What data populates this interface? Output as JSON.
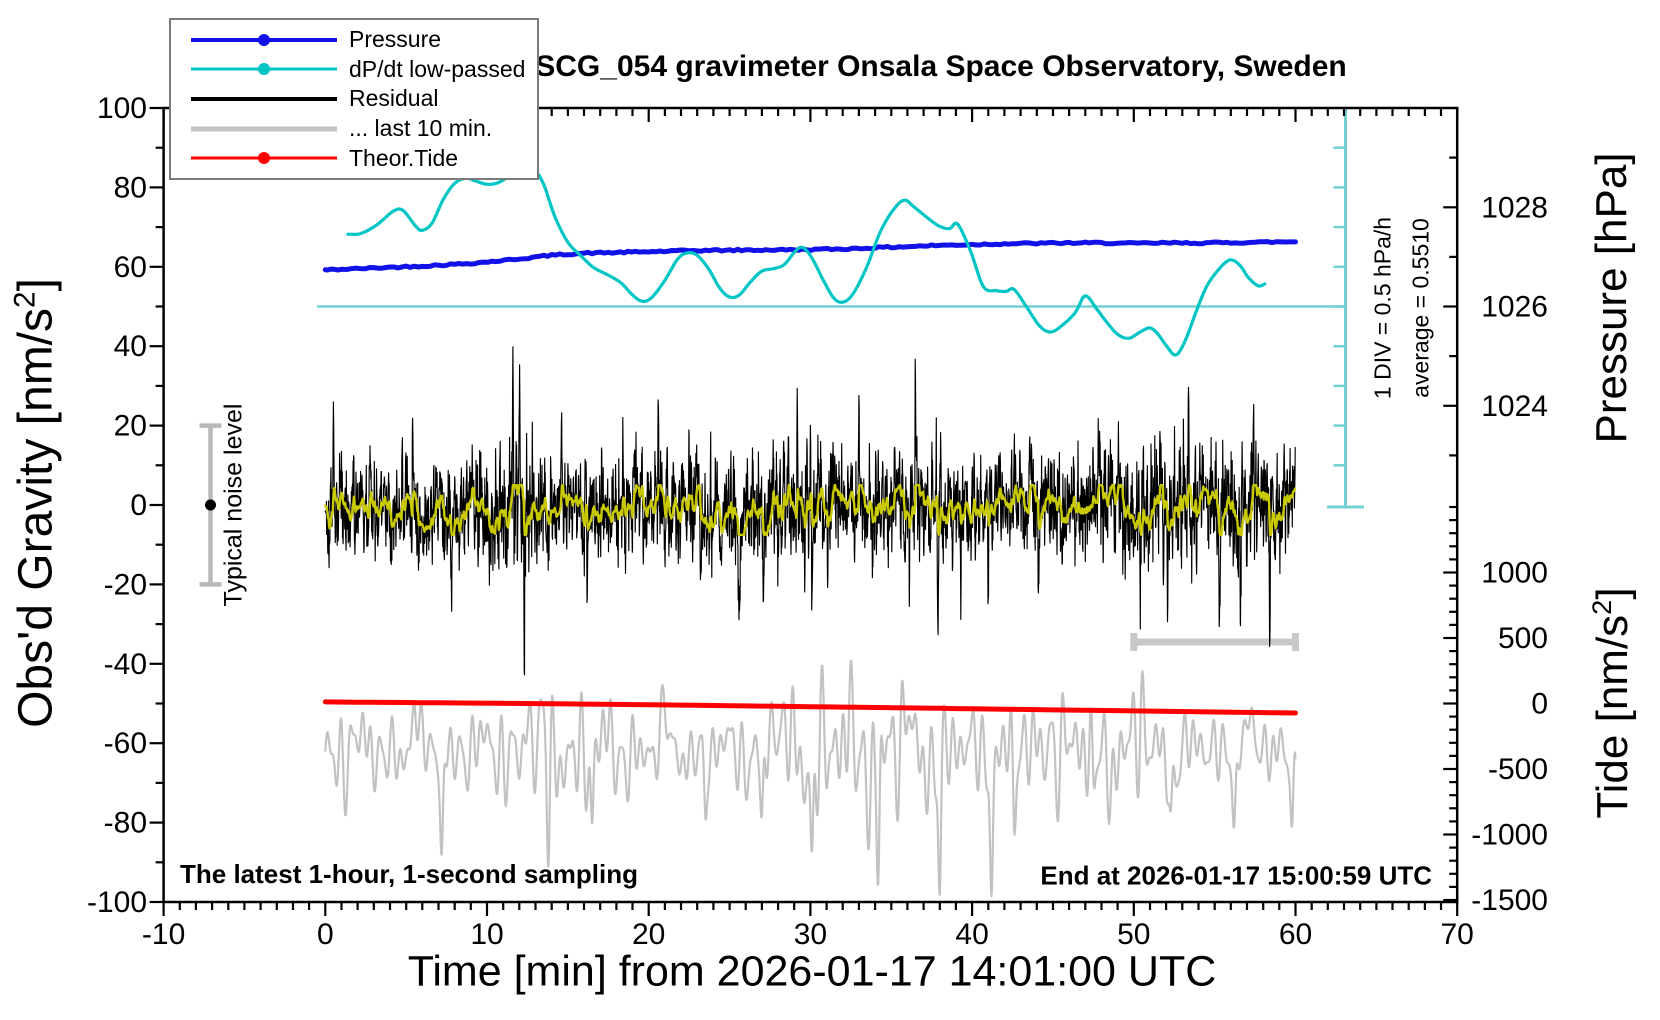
{
  "colors": {
    "pressure": "#1212E8",
    "dpdt": "#00C5C5",
    "dpdt_ref": "#74D1D1",
    "residual": "#000000",
    "last10": "#C2C2C2",
    "marker_gray": "#C8C8C8",
    "noise_bar": "#B8B8B8",
    "tide": "#FF0000",
    "lowpass": "#C9C900",
    "frame": "#000000"
  },
  "legend": {
    "items": [
      {
        "label": "Pressure",
        "color": "#1212E8",
        "thickness": 4,
        "dot": true
      },
      {
        "label": "dP/dt low-passed",
        "color": "#00C5C5",
        "thickness": 3,
        "dot": true
      },
      {
        "label": "Residual",
        "color": "#000000",
        "thickness": 4,
        "dot": false
      },
      {
        "label": "... last 10 min.",
        "color": "#C2C2C2",
        "thickness": 5,
        "dot": false
      },
      {
        "label": "Theor.Tide",
        "color": "#FF0000",
        "thickness": 3,
        "dot": true
      }
    ]
  },
  "chart_data": {
    "type": "line",
    "title": "SCG_054 gravimeter Onsala Space Observatory, Sweden",
    "x_axis": {
      "label": "Time [min] from 2026-01-17 14:01:00 UTC",
      "min": -10,
      "max": 70,
      "major_ticks": [
        -10,
        0,
        10,
        20,
        30,
        40,
        50,
        60,
        70
      ],
      "minor_step": 1
    },
    "y_left": {
      "label_prefix": "Obs'd Gravity [nm/s",
      "label_sup": "2",
      "label_suffix": "]",
      "min": -100,
      "max": 100,
      "major_step": 20,
      "minor_step": 10
    },
    "y_pressure": {
      "label": "Pressure [hPa]",
      "major_ticks": [
        1024,
        1026,
        1028
      ],
      "minor_step": 1,
      "min": 1022,
      "max": 1030,
      "anchor_hpa": 1026,
      "anchor_gravity": 50,
      "gravity_per_hpa": 12.5
    },
    "y_tide": {
      "label_prefix": "Tide [nm/s",
      "label_sup": "2",
      "label_suffix": "]",
      "major_ticks": [
        1000,
        500,
        0,
        -500,
        -1000,
        -1500
      ],
      "minor_step": 100,
      "min": -1500,
      "max": 1500,
      "anchor_tide": 0,
      "anchor_gravity": -50,
      "gravity_per_tide_unit": 0.033
    },
    "annotations": {
      "noise_marker_label": "Typical noise level",
      "div_label": "1 DIV = 0.5 hPa/h",
      "average_label": "average = 0.5510",
      "sampling_label": "The latest 1-hour, 1-second sampling",
      "end_label": "End at 2026-01-17 15:00:59 UTC"
    },
    "noise_marker": {
      "t": -7.1,
      "center_gravity": 0,
      "half_range_gravity": 20
    },
    "dpdt_scale": {
      "zero_line_gravity": 50,
      "div_value_hpa_per_h": 0.5,
      "average_hpa_per_h": 0.551,
      "divisions_above_zero": 4,
      "divisions_below_zero": 5
    },
    "series": {
      "pressure": {
        "name": "Pressure",
        "keypoints": [
          [
            0,
            59.2
          ],
          [
            3,
            59.7
          ],
          [
            6,
            60.2
          ],
          [
            9,
            60.9
          ],
          [
            12,
            62.0
          ],
          [
            14,
            62.9
          ],
          [
            16,
            63.4
          ],
          [
            18,
            63.6
          ],
          [
            20,
            63.8
          ],
          [
            23,
            64.1
          ],
          [
            26,
            64.2
          ],
          [
            29,
            64.3
          ],
          [
            32,
            64.5
          ],
          [
            34,
            64.8
          ],
          [
            36,
            65.1
          ],
          [
            38,
            65.4
          ],
          [
            40,
            65.6
          ],
          [
            42,
            65.8
          ],
          [
            44,
            65.9
          ],
          [
            46,
            66.0
          ],
          [
            48,
            66.0
          ],
          [
            50,
            65.9
          ],
          [
            52,
            66.0
          ],
          [
            54,
            66.0
          ],
          [
            56,
            66.1
          ],
          [
            58,
            66.2
          ],
          [
            60,
            66.3
          ]
        ],
        "jitter_seed": 42
      },
      "dpdt": {
        "name": "dP/dt low-passed",
        "keypoints": [
          [
            1.4,
            68.2
          ],
          [
            2.2,
            68.4
          ],
          [
            3.2,
            70.6
          ],
          [
            4.2,
            74.0
          ],
          [
            4.8,
            74.2
          ],
          [
            5.6,
            70.2
          ],
          [
            6.0,
            69.2
          ],
          [
            6.6,
            71.0
          ],
          [
            7.3,
            77.0
          ],
          [
            8.0,
            81.0
          ],
          [
            8.7,
            82.3
          ],
          [
            9.3,
            81.6
          ],
          [
            10.0,
            80.8
          ],
          [
            10.7,
            81.2
          ],
          [
            11.4,
            83.0
          ],
          [
            12.2,
            85.6
          ],
          [
            12.9,
            84.6
          ],
          [
            13.5,
            80.8
          ],
          [
            14.2,
            72.6
          ],
          [
            15.0,
            66.2
          ],
          [
            15.8,
            62.8
          ],
          [
            16.6,
            59.8
          ],
          [
            17.5,
            57.9
          ],
          [
            18.3,
            55.9
          ],
          [
            19.0,
            52.9
          ],
          [
            19.6,
            51.3
          ],
          [
            20.2,
            52.3
          ],
          [
            21.0,
            56.6
          ],
          [
            21.8,
            62.0
          ],
          [
            22.4,
            63.5
          ],
          [
            23.0,
            62.9
          ],
          [
            23.7,
            59.5
          ],
          [
            24.4,
            54.6
          ],
          [
            25.0,
            52.4
          ],
          [
            25.6,
            52.9
          ],
          [
            26.3,
            56.2
          ],
          [
            27.0,
            58.9
          ],
          [
            27.8,
            59.6
          ],
          [
            28.4,
            60.6
          ],
          [
            29.0,
            63.6
          ],
          [
            29.5,
            64.9
          ],
          [
            30.1,
            62.2
          ],
          [
            30.8,
            56.6
          ],
          [
            31.5,
            51.9
          ],
          [
            32.1,
            51.2
          ],
          [
            32.7,
            53.6
          ],
          [
            33.5,
            60.1
          ],
          [
            34.3,
            68.6
          ],
          [
            35.1,
            74.2
          ],
          [
            35.8,
            76.8
          ],
          [
            36.4,
            75.1
          ],
          [
            37.1,
            72.8
          ],
          [
            37.9,
            70.4
          ],
          [
            38.6,
            69.6
          ],
          [
            39.1,
            70.8
          ],
          [
            39.9,
            64.0
          ],
          [
            40.7,
            55.0
          ],
          [
            41.5,
            54.0
          ],
          [
            42.1,
            53.8
          ],
          [
            42.6,
            54.3
          ],
          [
            43.4,
            49.7
          ],
          [
            44.2,
            45.0
          ],
          [
            44.9,
            43.6
          ],
          [
            45.7,
            45.7
          ],
          [
            46.4,
            48.6
          ],
          [
            47.0,
            52.7
          ],
          [
            47.7,
            49.4
          ],
          [
            48.3,
            46.2
          ],
          [
            49.0,
            43.0
          ],
          [
            49.7,
            42.0
          ],
          [
            50.4,
            43.6
          ],
          [
            51.0,
            44.6
          ],
          [
            51.5,
            43.0
          ],
          [
            52.0,
            40.2
          ],
          [
            52.6,
            37.8
          ],
          [
            53.2,
            41.6
          ],
          [
            53.9,
            49.2
          ],
          [
            54.5,
            55.0
          ],
          [
            55.1,
            58.6
          ],
          [
            55.7,
            61.2
          ],
          [
            56.1,
            61.7
          ],
          [
            56.6,
            60.2
          ],
          [
            57.1,
            57.2
          ],
          [
            57.7,
            55.2
          ],
          [
            58.1,
            55.7
          ]
        ]
      },
      "residual": {
        "name": "Residual",
        "seed": 1337,
        "center_gravity": 0,
        "envelope": [
          [
            0,
            11
          ],
          [
            1,
            13
          ],
          [
            2,
            11
          ],
          [
            4,
            10
          ],
          [
            6,
            11
          ],
          [
            8,
            12
          ],
          [
            10,
            13
          ],
          [
            11.5,
            15
          ],
          [
            12.2,
            20
          ],
          [
            13,
            13
          ],
          [
            15,
            11
          ],
          [
            17,
            10.5
          ],
          [
            19,
            12
          ],
          [
            21,
            13
          ],
          [
            23,
            12
          ],
          [
            25,
            13
          ],
          [
            27,
            14
          ],
          [
            29,
            12.5
          ],
          [
            31,
            13
          ],
          [
            33,
            12
          ],
          [
            35,
            14
          ],
          [
            36.5,
            15
          ],
          [
            38,
            13
          ],
          [
            40,
            11.5
          ],
          [
            42,
            12
          ],
          [
            44,
            11
          ],
          [
            46,
            11.5
          ],
          [
            48,
            13
          ],
          [
            50,
            14
          ],
          [
            52,
            14.5
          ],
          [
            54,
            13.5
          ],
          [
            56,
            15
          ],
          [
            58,
            13
          ],
          [
            60,
            12.5
          ]
        ],
        "spikes": [
          [
            0.5,
            26
          ],
          [
            3.1,
            -22
          ],
          [
            5.4,
            24
          ],
          [
            7.8,
            -23
          ],
          [
            11.6,
            29
          ],
          [
            12.0,
            43
          ],
          [
            12.3,
            -36
          ],
          [
            14.6,
            25
          ],
          [
            16.2,
            -24
          ],
          [
            18.4,
            22
          ],
          [
            20.6,
            27
          ],
          [
            23.2,
            -24
          ],
          [
            25.6,
            -29
          ],
          [
            27.1,
            -33
          ],
          [
            29.2,
            26
          ],
          [
            30.1,
            -29
          ],
          [
            31.4,
            24
          ],
          [
            33.0,
            24
          ],
          [
            35.2,
            26
          ],
          [
            36.5,
            34
          ],
          [
            37.9,
            -29
          ],
          [
            39.3,
            -24
          ],
          [
            41.0,
            -22
          ],
          [
            44.1,
            -26
          ],
          [
            46.3,
            22
          ],
          [
            47.9,
            25
          ],
          [
            50.4,
            -26
          ],
          [
            52.1,
            -28
          ],
          [
            53.4,
            31
          ],
          [
            55.3,
            -26
          ],
          [
            56.6,
            -40
          ],
          [
            57.4,
            29
          ],
          [
            58.4,
            -25
          ],
          [
            59.3,
            23
          ]
        ]
      },
      "lowpass_residual": {
        "name": "Residual low-passed",
        "gain": 1.15
      },
      "last10": {
        "name": "... last 10 min.",
        "seed": 777,
        "center_gravity": -62,
        "harmonic_periods_min": [
          0.62,
          0.45,
          0.83,
          1.9,
          3.7
        ],
        "harmonic_amps": [
          9,
          6.5,
          7,
          5.5,
          4.5
        ],
        "dips": [
          [
            7.2,
            -26
          ],
          [
            13.8,
            -23
          ],
          [
            16.5,
            -20
          ],
          [
            23.5,
            -17
          ],
          [
            27.0,
            -20
          ],
          [
            30.1,
            -27
          ],
          [
            34.2,
            -32
          ],
          [
            38.0,
            -36
          ],
          [
            41.2,
            -30
          ],
          [
            42.6,
            -20
          ],
          [
            47.5,
            -16
          ],
          [
            52.3,
            -18
          ],
          [
            56.2,
            -16
          ],
          [
            59.8,
            -20
          ]
        ],
        "bumps": [
          [
            5.5,
            12
          ],
          [
            12.5,
            13
          ],
          [
            21,
            10
          ],
          [
            27.8,
            12
          ],
          [
            36,
            10
          ],
          [
            44.8,
            13
          ],
          [
            50.5,
            10
          ],
          [
            57,
            11
          ]
        ],
        "marker": {
          "t_start": 50,
          "t_end": 60,
          "gravity": -34.5
        }
      },
      "tide": {
        "name": "Theor.Tide",
        "keypoints": [
          [
            0,
            -49.6
          ],
          [
            15,
            -50.1
          ],
          [
            30,
            -50.8
          ],
          [
            45,
            -51.6
          ],
          [
            60,
            -52.4
          ]
        ]
      }
    }
  }
}
